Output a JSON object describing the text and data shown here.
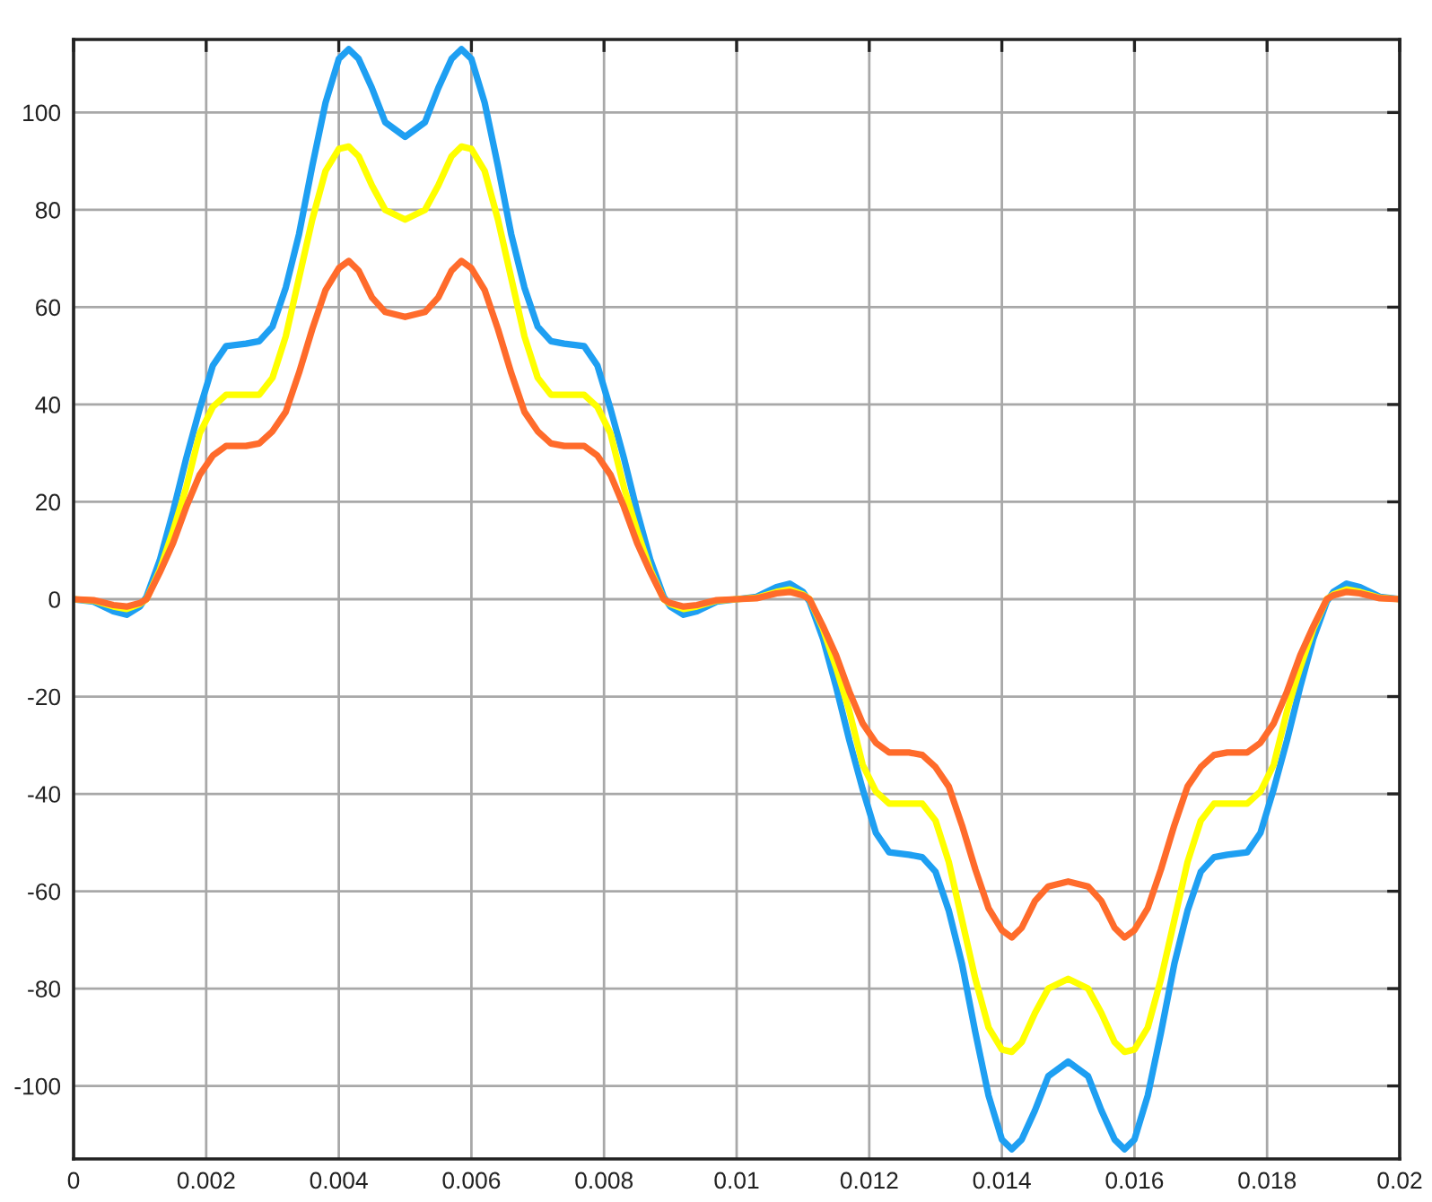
{
  "chart_data": {
    "type": "line",
    "x": [
      0,
      0.0003,
      0.0006,
      0.0008,
      0.001,
      0.0011,
      0.0013,
      0.0015,
      0.0017,
      0.0019,
      0.0021,
      0.0023,
      0.0026,
      0.0028,
      0.003,
      0.0032,
      0.0034,
      0.0036,
      0.0038,
      0.004,
      0.00415,
      0.0043,
      0.0045,
      0.0047,
      0.005,
      0.0053,
      0.0055,
      0.0057,
      0.00585,
      0.006,
      0.0062,
      0.0064,
      0.0066,
      0.0068,
      0.007,
      0.0072,
      0.0074,
      0.0077,
      0.0079,
      0.0081,
      0.0083,
      0.0085,
      0.0087,
      0.0089,
      0.009,
      0.0092,
      0.0094,
      0.0097,
      0.01,
      0.0103,
      0.0106,
      0.0108,
      0.011,
      0.0111,
      0.0113,
      0.0115,
      0.0117,
      0.0119,
      0.0121,
      0.0123,
      0.0126,
      0.0128,
      0.013,
      0.0132,
      0.0134,
      0.0136,
      0.0138,
      0.014,
      0.01415,
      0.0143,
      0.0145,
      0.0147,
      0.015,
      0.0153,
      0.0155,
      0.0157,
      0.01585,
      0.016,
      0.0162,
      0.0164,
      0.0166,
      0.0168,
      0.017,
      0.0172,
      0.0174,
      0.0177,
      0.0179,
      0.0181,
      0.0183,
      0.0185,
      0.0187,
      0.0189,
      0.019,
      0.0192,
      0.0194,
      0.0197,
      0.02
    ],
    "series": [
      {
        "color": "#1e9ff2",
        "values": [
          0,
          -0.5,
          -2.5,
          -3.2,
          -1.5,
          0.5,
          8,
          18,
          29,
          39,
          48,
          52,
          52.5,
          53,
          56,
          64,
          75,
          89,
          102,
          111,
          113,
          111,
          105,
          98,
          95,
          98,
          105,
          111,
          113,
          111,
          102,
          89,
          75,
          64,
          56,
          53,
          52.5,
          52,
          48,
          39,
          29,
          18,
          8,
          0.5,
          -1.5,
          -3.2,
          -2.5,
          -0.5,
          0,
          0.5,
          2.5,
          3.2,
          1.5,
          -0.5,
          -8,
          -18,
          -29,
          -39,
          -48,
          -52,
          -52.5,
          -53,
          -56,
          -64,
          -75,
          -89,
          -102,
          -111,
          -113,
          -111,
          -105,
          -98,
          -95,
          -98,
          -105,
          -111,
          -113,
          -111,
          -102,
          -89,
          -75,
          -64,
          -56,
          -53,
          -52.5,
          -52,
          -48,
          -39,
          -29,
          -18,
          -8,
          -0.5,
          1.5,
          3.2,
          2.5,
          0.5,
          0
        ]
      },
      {
        "color": "#ffff00",
        "values": [
          0,
          -0.3,
          -1.5,
          -2,
          -1,
          0,
          6,
          14,
          23,
          34,
          39.5,
          42,
          42,
          42,
          45.5,
          54,
          66,
          78,
          88,
          92.5,
          93,
          91,
          85,
          80,
          78,
          80,
          85,
          91,
          93,
          92.5,
          88,
          78,
          66,
          54,
          45.5,
          42,
          42,
          42,
          39.5,
          34,
          23,
          14,
          6,
          0,
          -1,
          -2,
          -1.5,
          -0.3,
          0,
          0.3,
          1.5,
          2,
          1,
          0,
          -6,
          -14,
          -23,
          -34,
          -39.5,
          -42,
          -42,
          -42,
          -45.5,
          -54,
          -66,
          -78,
          -88,
          -92.5,
          -93,
          -91,
          -85,
          -80,
          -78,
          -80,
          -85,
          -91,
          -93,
          -92.5,
          -88,
          -78,
          -66,
          -54,
          -45.5,
          -42,
          -42,
          -42,
          -39.5,
          -34,
          -23,
          -14,
          -6,
          0,
          1,
          2,
          1.5,
          0.3,
          0
        ]
      },
      {
        "color": "#ff6b2b",
        "values": [
          0,
          -0.2,
          -1.2,
          -1.5,
          -0.8,
          0,
          5.5,
          11.5,
          19,
          25.5,
          29.5,
          31.5,
          31.5,
          32,
          34.5,
          38.5,
          46.5,
          55.5,
          63.5,
          68,
          69.5,
          67.5,
          62,
          59,
          58,
          59,
          62,
          67.5,
          69.5,
          68,
          63.5,
          55.5,
          46.5,
          38.5,
          34.5,
          32,
          31.5,
          31.5,
          29.5,
          25.5,
          19,
          11.5,
          5.5,
          0,
          -0.8,
          -1.5,
          -1.2,
          -0.2,
          0,
          0.2,
          1.2,
          1.5,
          0.8,
          0,
          -5.5,
          -11.5,
          -19,
          -25.5,
          -29.5,
          -31.5,
          -31.5,
          -32,
          -34.5,
          -38.5,
          -46.5,
          -55.5,
          -63.5,
          -68,
          -69.5,
          -67.5,
          -62,
          -59,
          -58,
          -59,
          -62,
          -67.5,
          -69.5,
          -68,
          -63.5,
          -55.5,
          -46.5,
          -38.5,
          -34.5,
          -32,
          -31.5,
          -31.5,
          -29.5,
          -25.5,
          -19,
          -11.5,
          -5.5,
          0,
          0.8,
          1.5,
          1.2,
          0.2,
          0
        ]
      }
    ],
    "xlim": [
      0,
      0.02
    ],
    "ylim": [
      -115,
      115
    ],
    "xticks": [
      0,
      0.002,
      0.004,
      0.006,
      0.008,
      0.01,
      0.012,
      0.014,
      0.016,
      0.018,
      0.02
    ],
    "yticks": [
      -100,
      -80,
      -60,
      -40,
      -20,
      0,
      20,
      40,
      60,
      80,
      100
    ],
    "grid": true
  }
}
